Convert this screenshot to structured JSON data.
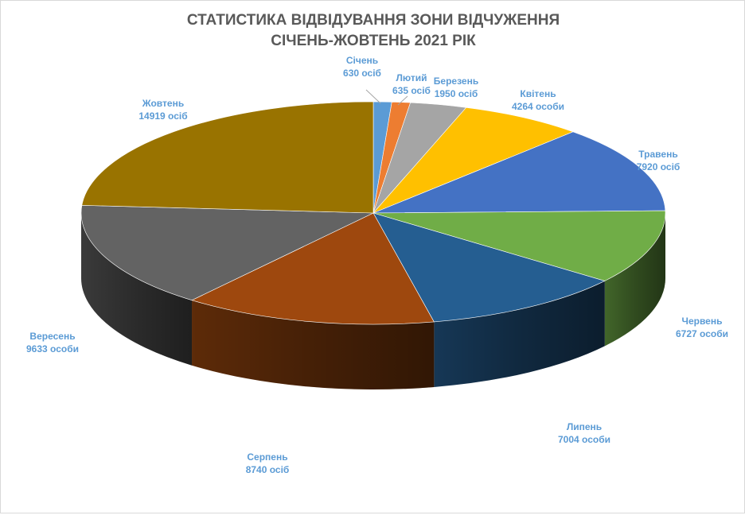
{
  "chart_data": {
    "type": "pie",
    "style": "3d",
    "title": "СТАТИСТИКА ВІДВІДУВАННЯ ЗОНИ ВІДЧУЖЕННЯ",
    "subtitle": "СІЧЕНЬ-ЖОВТЕНЬ 2021 РІК",
    "legend": "none",
    "slices": [
      {
        "label": "Січень",
        "value": 630,
        "value_label": "630 осіб",
        "color": "#5b9bd5"
      },
      {
        "label": "Лютий",
        "value": 635,
        "value_label": "635 осіб",
        "color": "#ed7d31"
      },
      {
        "label": "Березень",
        "value": 1950,
        "value_label": "1950 осіб",
        "color": "#a5a5a5"
      },
      {
        "label": "Квітень",
        "value": 4264,
        "value_label": "4264 особи",
        "color": "#ffc000"
      },
      {
        "label": "Травень",
        "value": 7920,
        "value_label": "7920 осіб",
        "color": "#4472c4"
      },
      {
        "label": "Червень",
        "value": 6727,
        "value_label": "6727 особи",
        "color": "#70ad47"
      },
      {
        "label": "Липень",
        "value": 7004,
        "value_label": "7004 особи",
        "color": "#255e91"
      },
      {
        "label": "Серпень",
        "value": 8740,
        "value_label": "8740 осіб",
        "color": "#9e480e"
      },
      {
        "label": "Вересень",
        "value": 9633,
        "value_label": "9633 особи",
        "color": "#636363"
      },
      {
        "label": "Жовтень",
        "value": 14919,
        "value_label": "14919 осіб",
        "color": "#997300"
      }
    ],
    "label_color": "#5b9bd5"
  }
}
